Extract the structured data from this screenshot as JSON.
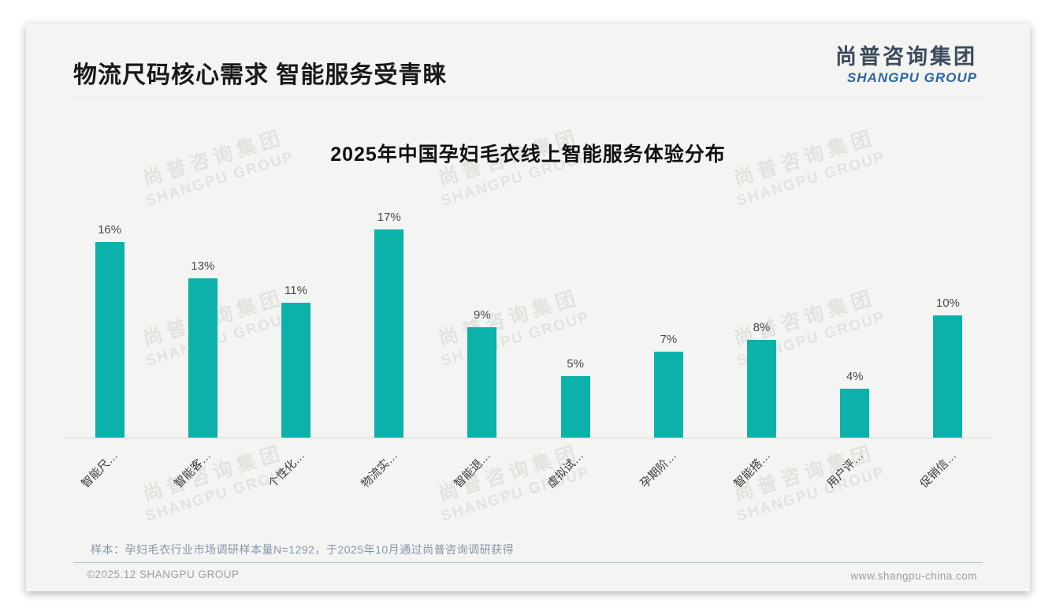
{
  "header": {
    "title": "物流尺码核心需求 智能服务受青睐",
    "logo_cn": "尚普咨询集团",
    "logo_en": "SHANGPU GROUP"
  },
  "watermark": {
    "line1": "尚普咨询集团",
    "line2": "SHANGPU GROUP"
  },
  "chart_data": {
    "type": "bar",
    "title": "2025年中国孕妇毛衣线上智能服务体验分布",
    "categories": [
      "智能尺…",
      "智能客…",
      "个性化…",
      "物流实…",
      "智能退…",
      "虚拟试…",
      "孕期阶…",
      "智能搭…",
      "用户评…",
      "促销信…"
    ],
    "values": [
      16,
      13,
      11,
      17,
      9,
      5,
      7,
      8,
      4,
      10
    ],
    "unit": "%",
    "value_labels": [
      "16%",
      "13%",
      "11%",
      "17%",
      "9%",
      "5%",
      "7%",
      "8%",
      "4%",
      "10%"
    ],
    "bar_color": "#0cb2aa",
    "ylim": [
      0,
      18
    ],
    "grid": false,
    "legend": null,
    "xlabel": "",
    "ylabel": ""
  },
  "footnote": {
    "text": "样本：孕妇毛衣行业市场调研样本量N=1292，于2025年10月通过尚普咨询调研获得"
  },
  "footer": {
    "copyright": "©2025.12 SHANGPU GROUP",
    "website": "www.shangpu-china.com"
  }
}
